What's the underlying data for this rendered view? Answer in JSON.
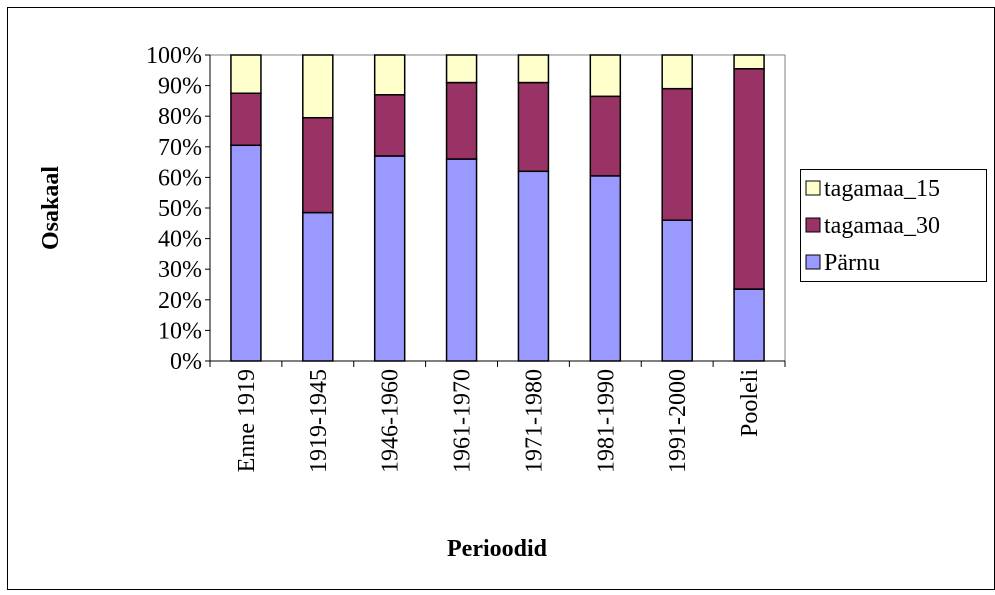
{
  "chart_data": {
    "type": "bar",
    "stacked": true,
    "percent_stacked": true,
    "xlabel": "Perioodid",
    "ylabel": "Osakaal",
    "ylim": [
      0,
      100
    ],
    "yticks": [
      "0%",
      "10%",
      "20%",
      "30%",
      "40%",
      "50%",
      "60%",
      "70%",
      "80%",
      "90%",
      "100%"
    ],
    "grid": false,
    "legend_position": "right",
    "categories": [
      "Enne 1919",
      "1919-1945",
      "1946-1960",
      "1961-1970",
      "1971-1980",
      "1981-1990",
      "1991-2000",
      "Pooleli"
    ],
    "series": [
      {
        "name": "Pärnu",
        "color": "#9999ff",
        "values": [
          70.5,
          48.5,
          67,
          66,
          62,
          60.5,
          46,
          23.5
        ]
      },
      {
        "name": "tagamaa_30",
        "color": "#993366",
        "values": [
          17,
          31,
          20,
          25,
          29,
          26,
          43,
          72
        ]
      },
      {
        "name": "tagamaa_15",
        "color": "#ffffcc",
        "values": [
          12.5,
          20.5,
          13,
          9,
          9,
          13.5,
          11,
          4.5
        ]
      }
    ],
    "legend_order": [
      "tagamaa_15",
      "tagamaa_30",
      "Pärnu"
    ]
  }
}
